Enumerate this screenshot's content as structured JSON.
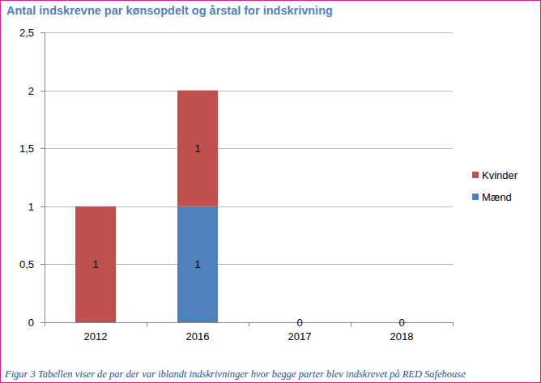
{
  "chart_data": {
    "type": "bar",
    "title": "Antal indskrevne par kønsopdelt og årstal for indskrivning",
    "caption": "Figur 3 Tabellen viser de par der var iblandt indskrivninger hvor begge parter blev indskrevet på RED Safehouse",
    "categories": [
      "2012",
      "2016",
      "2017",
      "2018"
    ],
    "series": [
      {
        "name": "Mænd",
        "color": "#4f81bd",
        "values": [
          null,
          1,
          0,
          0
        ]
      },
      {
        "name": "Kvinder",
        "color": "#c0504d",
        "values": [
          1,
          1,
          null,
          null
        ]
      }
    ],
    "stacked": true,
    "data_labels": true,
    "ylim": [
      0,
      2.5
    ],
    "yticks": [
      0,
      {
        "value": 0.5,
        "label": "0,5"
      },
      1,
      {
        "value": 1.5,
        "label": "1,5"
      },
      2,
      {
        "value": 2.5,
        "label": "2,5"
      }
    ],
    "grid": true,
    "legend": "right"
  }
}
